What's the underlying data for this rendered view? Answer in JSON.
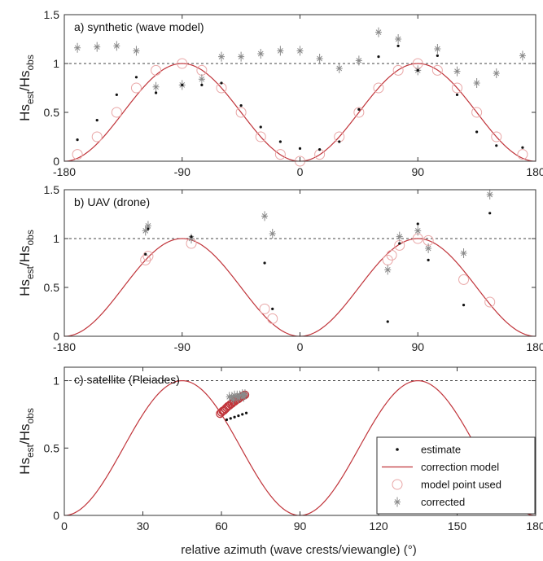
{
  "colors": {
    "model": "#c0343a",
    "estimate": "#111111",
    "used": "#e9a7a7",
    "corrected": "#8a8a8a",
    "reference": "#444444"
  },
  "chart_data": [
    {
      "type": "scatter",
      "title": "a) synthetic (wave model)",
      "ylabel": {
        "base": "Hs",
        "sub1": "est",
        "mid": "/Hs",
        "sub2": "obs"
      },
      "xlim": [
        -180,
        180
      ],
      "ylim": [
        0,
        1.5
      ],
      "xticks": [
        -180,
        -90,
        0,
        90,
        180
      ],
      "yticks": [
        0,
        0.5,
        1,
        1.5
      ],
      "ytick_labels": [
        "0",
        "0.5",
        "1",
        "1.5"
      ],
      "reference_line": 1,
      "series": [
        {
          "role": "estimate",
          "x": [
            -170,
            -155,
            -140,
            -125,
            -110,
            -90,
            -75,
            -60,
            -45,
            -30,
            -15,
            0,
            15,
            30,
            45,
            60,
            75,
            90,
            105,
            120,
            135,
            150,
            170
          ],
          "y": [
            0.22,
            0.42,
            0.68,
            0.86,
            0.7,
            0.78,
            0.78,
            0.8,
            0.57,
            0.35,
            0.2,
            0.13,
            0.12,
            0.2,
            0.53,
            1.07,
            1.18,
            0.93,
            1.08,
            0.68,
            0.3,
            0.16,
            0.14
          ]
        },
        {
          "role": "model point used",
          "x": [
            -170,
            -155,
            -140,
            -125,
            -110,
            -90,
            -75,
            -60,
            -45,
            -30,
            -15,
            0,
            15,
            30,
            45,
            60,
            75,
            90,
            105,
            120,
            135,
            150,
            170
          ],
          "y": [
            0.07,
            0.25,
            0.5,
            0.75,
            0.93,
            1.0,
            0.93,
            0.75,
            0.5,
            0.25,
            0.07,
            0.0,
            0.07,
            0.25,
            0.5,
            0.75,
            0.93,
            1.0,
            0.93,
            0.75,
            0.5,
            0.25,
            0.07
          ]
        },
        {
          "role": "corrected",
          "x": [
            -170,
            -155,
            -140,
            -125,
            -110,
            -90,
            -75,
            -60,
            -45,
            -30,
            -15,
            0,
            15,
            30,
            45,
            60,
            75,
            90,
            105,
            120,
            135,
            150,
            170
          ],
          "y": [
            1.16,
            1.17,
            1.18,
            1.13,
            0.76,
            0.78,
            0.84,
            1.07,
            1.07,
            1.1,
            1.13,
            1.13,
            1.05,
            0.95,
            1.03,
            1.32,
            1.25,
            0.93,
            1.15,
            0.92,
            0.8,
            0.9,
            1.08
          ]
        }
      ]
    },
    {
      "type": "scatter",
      "title": "b) UAV (drone)",
      "ylabel": {
        "base": "Hs",
        "sub1": "est",
        "mid": "/Hs",
        "sub2": "obs"
      },
      "xlim": [
        -180,
        180
      ],
      "ylim": [
        0,
        1.5
      ],
      "xticks": [
        -180,
        -90,
        0,
        90,
        180
      ],
      "yticks": [
        0,
        0.5,
        1,
        1.5
      ],
      "ytick_labels": [
        "0",
        "0.5",
        "1",
        "1.5"
      ],
      "reference_line": 1,
      "series": [
        {
          "role": "estimate",
          "x": [
            -118,
            -116,
            -83,
            -27,
            -21,
            67,
            76,
            90,
            98,
            125,
            145
          ],
          "y": [
            0.84,
            1.1,
            1.02,
            0.75,
            0.28,
            0.15,
            0.95,
            1.15,
            0.78,
            0.32,
            1.26
          ]
        },
        {
          "role": "model point used",
          "x": [
            -118,
            -116,
            -83,
            -27,
            -21,
            67,
            70,
            76,
            90,
            98,
            125,
            145
          ],
          "y": [
            0.78,
            0.82,
            0.95,
            0.28,
            0.18,
            0.78,
            0.83,
            0.93,
            1.0,
            0.98,
            0.58,
            0.35
          ]
        },
        {
          "role": "corrected",
          "x": [
            -118,
            -116,
            -83,
            -27,
            -21,
            67,
            76,
            90,
            98,
            125,
            145
          ],
          "y": [
            1.08,
            1.13,
            1.0,
            1.23,
            1.05,
            0.68,
            1.02,
            1.08,
            0.9,
            0.85,
            1.45
          ]
        }
      ]
    },
    {
      "type": "scatter",
      "title": "c) satellite (Pleiades)",
      "ylabel": {
        "base": "Hs",
        "sub1": "est",
        "mid": "/Hs",
        "sub2": "obs"
      },
      "xlabel": "relative azimuth (wave crests/viewangle) (°)",
      "xlim": [
        0,
        180
      ],
      "ylim": [
        0,
        1.1
      ],
      "xticks": [
        0,
        30,
        60,
        90,
        120,
        150,
        180
      ],
      "yticks": [
        0,
        0.5,
        1
      ],
      "ytick_labels": [
        "0",
        "0.5",
        "1"
      ],
      "reference_line": 1,
      "series": [
        {
          "role": "estimate",
          "x": [
            62,
            63.5,
            65,
            66.5,
            68,
            69.5
          ],
          "y": [
            0.71,
            0.72,
            0.73,
            0.74,
            0.75,
            0.76
          ]
        },
        {
          "role": "model point used",
          "x": [
            59.5,
            60,
            60.5,
            61,
            61.5,
            62,
            62.5,
            63,
            63.5,
            64,
            64.5,
            65,
            65.5,
            66,
            66.5,
            67,
            67.5,
            68,
            68.5,
            69
          ],
          "y": [
            0.755,
            0.765,
            0.775,
            0.78,
            0.79,
            0.8,
            0.81,
            0.815,
            0.825,
            0.83,
            0.84,
            0.845,
            0.855,
            0.86,
            0.865,
            0.875,
            0.88,
            0.885,
            0.89,
            0.895
          ]
        },
        {
          "role": "corrected",
          "x": [
            63,
            64,
            65,
            66,
            67,
            68,
            69,
            64.5,
            66.5,
            68.5
          ],
          "y": [
            0.88,
            0.88,
            0.89,
            0.89,
            0.89,
            0.9,
            0.9,
            0.86,
            0.87,
            0.88
          ]
        }
      ],
      "legend": {
        "position": "bottom-right",
        "entries": [
          "estimate",
          "correction model",
          "model point used",
          "corrected"
        ]
      }
    }
  ]
}
